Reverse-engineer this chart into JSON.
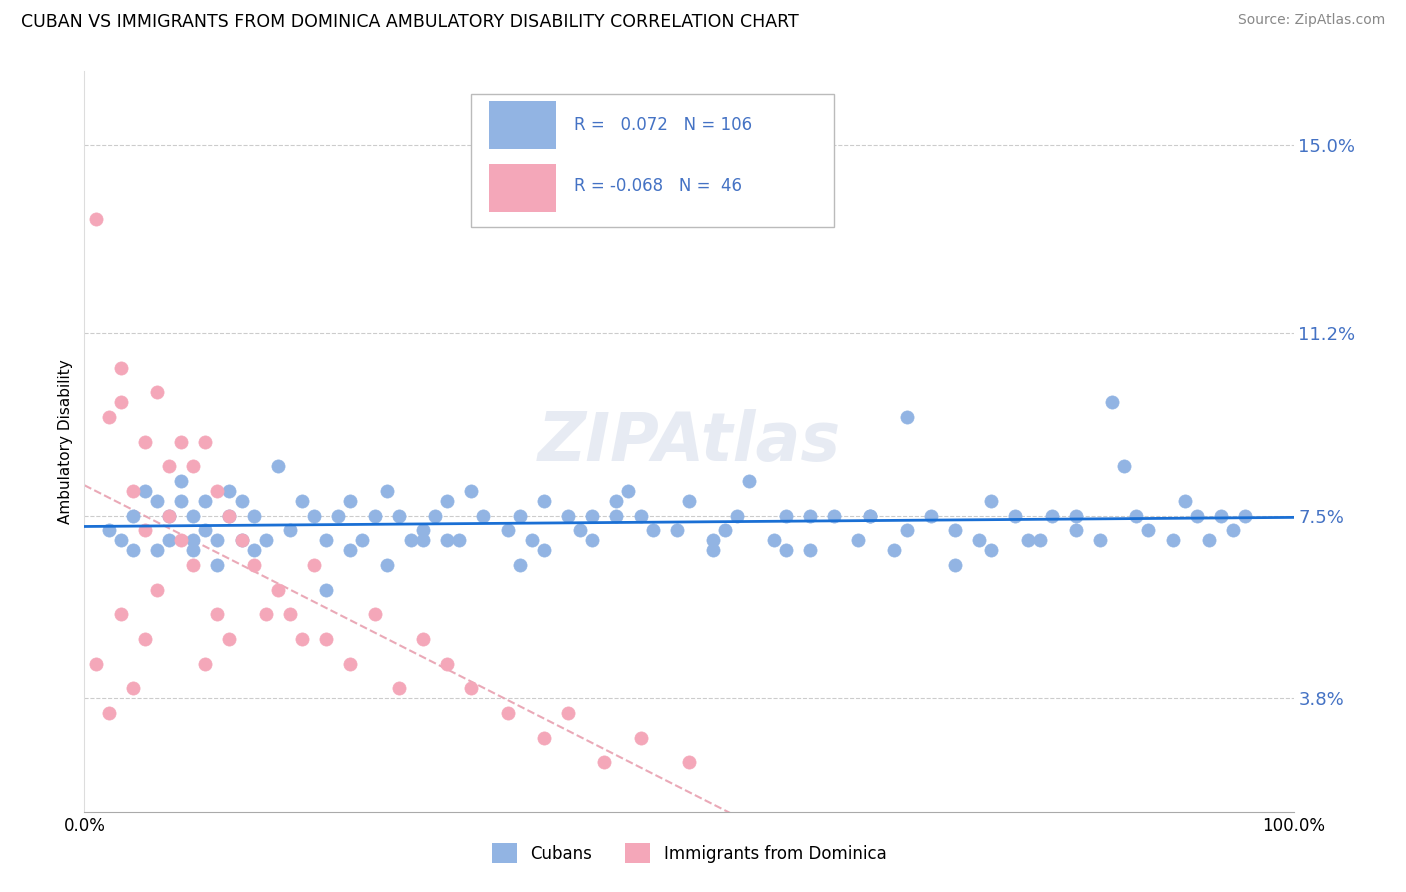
{
  "title": "CUBAN VS IMMIGRANTS FROM DOMINICA AMBULATORY DISABILITY CORRELATION CHART",
  "source": "Source: ZipAtlas.com",
  "ylabel": "Ambulatory Disability",
  "xlim": [
    0.0,
    100.0
  ],
  "ylim": [
    1.5,
    16.5
  ],
  "yticks": [
    3.8,
    7.5,
    11.2,
    15.0
  ],
  "ytick_labels": [
    "3.8%",
    "7.5%",
    "11.2%",
    "15.0%"
  ],
  "xticks": [
    0,
    100
  ],
  "xtick_labels": [
    "0.0%",
    "100.0%"
  ],
  "blue_color": "#92B4E3",
  "pink_color": "#F4A7B9",
  "trend_blue": "#1A6FD4",
  "trend_pink": "#E8A0B0",
  "label1": "Cubans",
  "label2": "Immigrants from Dominica",
  "legend_r1": "R =  0.072",
  "legend_n1": "N = 106",
  "legend_r2": "R = -0.068",
  "legend_n2": "N =  46",
  "cubans_x": [
    2,
    3,
    4,
    4,
    5,
    6,
    6,
    7,
    7,
    8,
    8,
    9,
    9,
    9,
    10,
    10,
    11,
    11,
    12,
    12,
    13,
    13,
    14,
    14,
    15,
    16,
    17,
    18,
    19,
    20,
    21,
    22,
    22,
    23,
    24,
    25,
    26,
    27,
    28,
    29,
    30,
    31,
    32,
    33,
    35,
    36,
    37,
    38,
    40,
    41,
    42,
    44,
    45,
    46,
    47,
    49,
    50,
    52,
    54,
    55,
    57,
    58,
    60,
    62,
    64,
    65,
    67,
    68,
    70,
    72,
    74,
    75,
    77,
    78,
    80,
    82,
    84,
    85,
    87,
    88,
    90,
    91,
    92,
    93,
    94,
    95,
    96,
    20,
    25,
    30,
    38,
    42,
    52,
    58,
    65,
    72,
    79,
    86,
    28,
    36,
    44,
    53,
    60,
    68,
    75,
    82
  ],
  "cubans_y": [
    7.2,
    7.0,
    7.5,
    6.8,
    8.0,
    6.8,
    7.8,
    7.0,
    7.5,
    7.8,
    8.2,
    7.0,
    6.8,
    7.5,
    7.2,
    7.8,
    6.5,
    7.0,
    8.0,
    7.5,
    7.0,
    7.8,
    6.8,
    7.5,
    7.0,
    8.5,
    7.2,
    7.8,
    7.5,
    7.0,
    7.5,
    7.8,
    6.8,
    7.0,
    7.5,
    8.0,
    7.5,
    7.0,
    7.2,
    7.5,
    7.8,
    7.0,
    8.0,
    7.5,
    7.2,
    7.5,
    7.0,
    7.8,
    7.5,
    7.2,
    7.0,
    7.8,
    8.0,
    7.5,
    7.2,
    7.2,
    7.8,
    7.0,
    7.5,
    8.2,
    7.0,
    7.5,
    6.8,
    7.5,
    7.0,
    7.5,
    6.8,
    9.5,
    7.5,
    7.2,
    7.0,
    7.8,
    7.5,
    7.0,
    7.5,
    7.2,
    7.0,
    9.8,
    7.5,
    7.2,
    7.0,
    7.8,
    7.5,
    7.0,
    7.5,
    7.2,
    7.5,
    6.0,
    6.5,
    7.0,
    6.8,
    7.5,
    6.8,
    6.8,
    7.5,
    6.5,
    7.0,
    8.5,
    7.0,
    6.5,
    7.5,
    7.2,
    7.5,
    7.2,
    6.8,
    7.5
  ],
  "dominica_x": [
    1,
    1,
    2,
    2,
    3,
    3,
    4,
    4,
    5,
    5,
    6,
    6,
    7,
    7,
    8,
    8,
    9,
    9,
    10,
    10,
    11,
    11,
    12,
    12,
    13,
    14,
    15,
    16,
    17,
    18,
    19,
    20,
    22,
    24,
    26,
    28,
    30,
    32,
    35,
    38,
    40,
    43,
    46,
    50,
    3,
    5
  ],
  "dominica_y": [
    13.5,
    4.5,
    9.5,
    3.5,
    10.5,
    5.5,
    8.0,
    4.0,
    9.0,
    5.0,
    10.0,
    6.0,
    8.5,
    7.5,
    9.0,
    7.0,
    8.5,
    6.5,
    9.0,
    4.5,
    8.0,
    5.5,
    7.5,
    5.0,
    7.0,
    6.5,
    5.5,
    6.0,
    5.5,
    5.0,
    6.5,
    5.0,
    4.5,
    5.5,
    4.0,
    5.0,
    4.5,
    4.0,
    3.5,
    3.0,
    3.5,
    2.5,
    3.0,
    2.5,
    9.8,
    7.2
  ]
}
